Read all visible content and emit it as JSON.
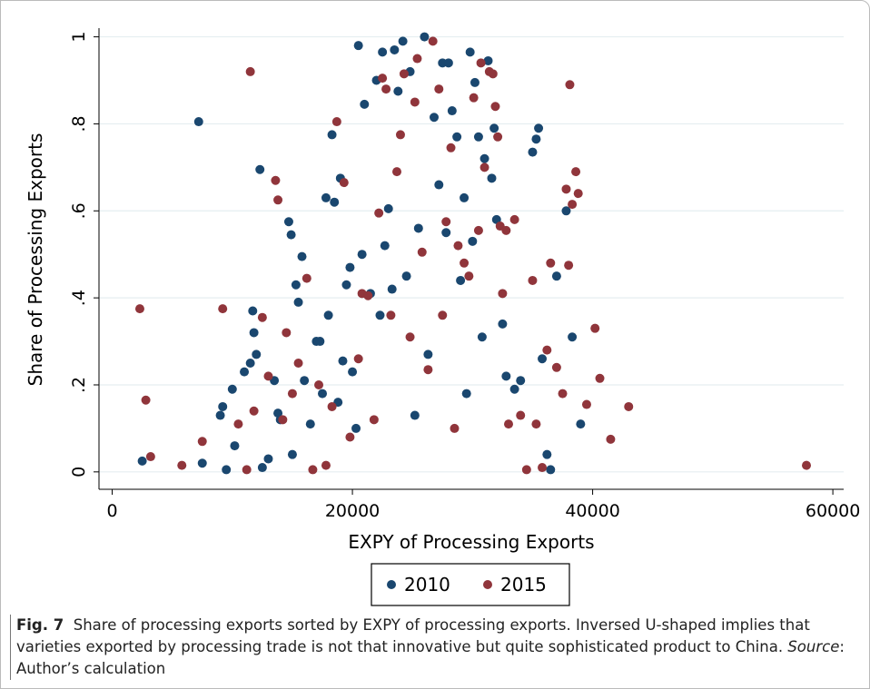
{
  "chart_data": {
    "type": "scatter",
    "x_label": "EXPY of Processing Exports",
    "y_label": "Share of Processing Exports",
    "xlim": [
      -1100,
      60900
    ],
    "ylim": [
      -0.04,
      1.02
    ],
    "xticks": [
      0,
      20000,
      40000,
      60000
    ],
    "yticks": [
      {
        "value": 0,
        "label": "0"
      },
      {
        "value": 0.2,
        "label": ".2"
      },
      {
        "value": 0.4,
        "label": ".4"
      },
      {
        "value": 0.6,
        "label": ".6"
      },
      {
        "value": 0.8,
        "label": ".8"
      },
      {
        "value": 1,
        "label": "1"
      }
    ],
    "grid": true,
    "legend": "bottom",
    "series": [
      {
        "name": "2010",
        "color": "#1a476f",
        "x": [
          2500,
          7200,
          7500,
          9000,
          9200,
          9500,
          10000,
          10200,
          11000,
          11500,
          11700,
          11800,
          12000,
          12300,
          12500,
          13000,
          13500,
          13800,
          14000,
          14700,
          14900,
          15000,
          15300,
          15500,
          15800,
          16000,
          16500,
          17000,
          17300,
          17500,
          17800,
          18000,
          18300,
          18500,
          18800,
          19000,
          19200,
          19500,
          19800,
          20000,
          20300,
          20500,
          20800,
          21000,
          21500,
          22000,
          22300,
          22500,
          22700,
          23000,
          23300,
          23500,
          23800,
          24200,
          24500,
          24800,
          25200,
          25500,
          26000,
          26300,
          26800,
          27200,
          27500,
          27800,
          28000,
          28300,
          28700,
          29000,
          29300,
          29500,
          29800,
          30000,
          30200,
          30500,
          30800,
          31000,
          31300,
          31600,
          31800,
          32000,
          32500,
          32800,
          33500,
          34000,
          35000,
          35300,
          35500,
          35800,
          36200,
          36500,
          37000,
          37800,
          38300,
          39000
        ],
        "values": [
          0.025,
          0.805,
          0.02,
          0.13,
          0.15,
          0.005,
          0.19,
          0.06,
          0.23,
          0.25,
          0.37,
          0.32,
          0.27,
          0.695,
          0.01,
          0.03,
          0.21,
          0.135,
          0.12,
          0.575,
          0.545,
          0.04,
          0.43,
          0.39,
          0.495,
          0.21,
          0.11,
          0.3,
          0.3,
          0.18,
          0.63,
          0.36,
          0.775,
          0.62,
          0.16,
          0.675,
          0.255,
          0.43,
          0.47,
          0.23,
          0.1,
          0.98,
          0.5,
          0.845,
          0.41,
          0.9,
          0.36,
          0.965,
          0.52,
          0.605,
          0.42,
          0.97,
          0.875,
          0.99,
          0.45,
          0.92,
          0.13,
          0.56,
          1.0,
          0.27,
          0.815,
          0.66,
          0.94,
          0.55,
          0.94,
          0.83,
          0.77,
          0.44,
          0.63,
          0.18,
          0.965,
          0.53,
          0.895,
          0.77,
          0.31,
          0.72,
          0.945,
          0.675,
          0.79,
          0.58,
          0.34,
          0.22,
          0.19,
          0.21,
          0.735,
          0.765,
          0.79,
          0.26,
          0.04,
          0.005,
          0.45,
          0.6,
          0.31,
          0.11
        ]
      },
      {
        "name": "2015",
        "color": "#90353b",
        "x": [
          2300,
          2800,
          3200,
          5800,
          7500,
          9200,
          10500,
          11200,
          11500,
          11800,
          12500,
          13000,
          13600,
          13800,
          14200,
          14500,
          15000,
          15500,
          16200,
          16700,
          17200,
          17800,
          18300,
          18700,
          19300,
          19800,
          20500,
          20800,
          21300,
          21800,
          22200,
          22500,
          22800,
          23200,
          23700,
          24000,
          24300,
          24800,
          25200,
          25400,
          25800,
          26300,
          26700,
          27200,
          27500,
          27800,
          28200,
          28500,
          28800,
          29300,
          29700,
          30100,
          30500,
          30700,
          31000,
          31400,
          31700,
          31900,
          32100,
          32300,
          32500,
          32800,
          33000,
          33500,
          34000,
          34500,
          35000,
          35300,
          35800,
          36200,
          36500,
          37000,
          37500,
          37800,
          38000,
          38100,
          38300,
          38600,
          38800,
          39500,
          40200,
          40600,
          41500,
          43000,
          57800
        ],
        "values": [
          0.375,
          0.165,
          0.035,
          0.015,
          0.07,
          0.375,
          0.11,
          0.005,
          0.92,
          0.14,
          0.355,
          0.22,
          0.67,
          0.625,
          0.12,
          0.32,
          0.18,
          0.25,
          0.445,
          0.005,
          0.2,
          0.015,
          0.15,
          0.805,
          0.665,
          0.08,
          0.26,
          0.41,
          0.405,
          0.12,
          0.595,
          0.905,
          0.88,
          0.36,
          0.69,
          0.775,
          0.915,
          0.31,
          0.85,
          0.95,
          0.505,
          0.235,
          0.99,
          0.88,
          0.36,
          0.575,
          0.745,
          0.1,
          0.52,
          0.48,
          0.45,
          0.86,
          0.555,
          0.94,
          0.7,
          0.92,
          0.915,
          0.84,
          0.77,
          0.565,
          0.41,
          0.555,
          0.11,
          0.58,
          0.13,
          0.005,
          0.44,
          0.11,
          0.01,
          0.28,
          0.48,
          0.24,
          0.18,
          0.65,
          0.475,
          0.89,
          0.615,
          0.69,
          0.64,
          0.155,
          0.33,
          0.215,
          0.075,
          0.15,
          0.015
        ]
      }
    ]
  },
  "caption": {
    "label": "Fig. 7",
    "text": "Share of processing exports sorted by EXPY of processing exports. Inversed U-shaped implies that varieties exported by processing trade is not that innovative but quite sophisticated product to China.",
    "source_label": "Source",
    "source_text": ": Author’s calculation"
  }
}
